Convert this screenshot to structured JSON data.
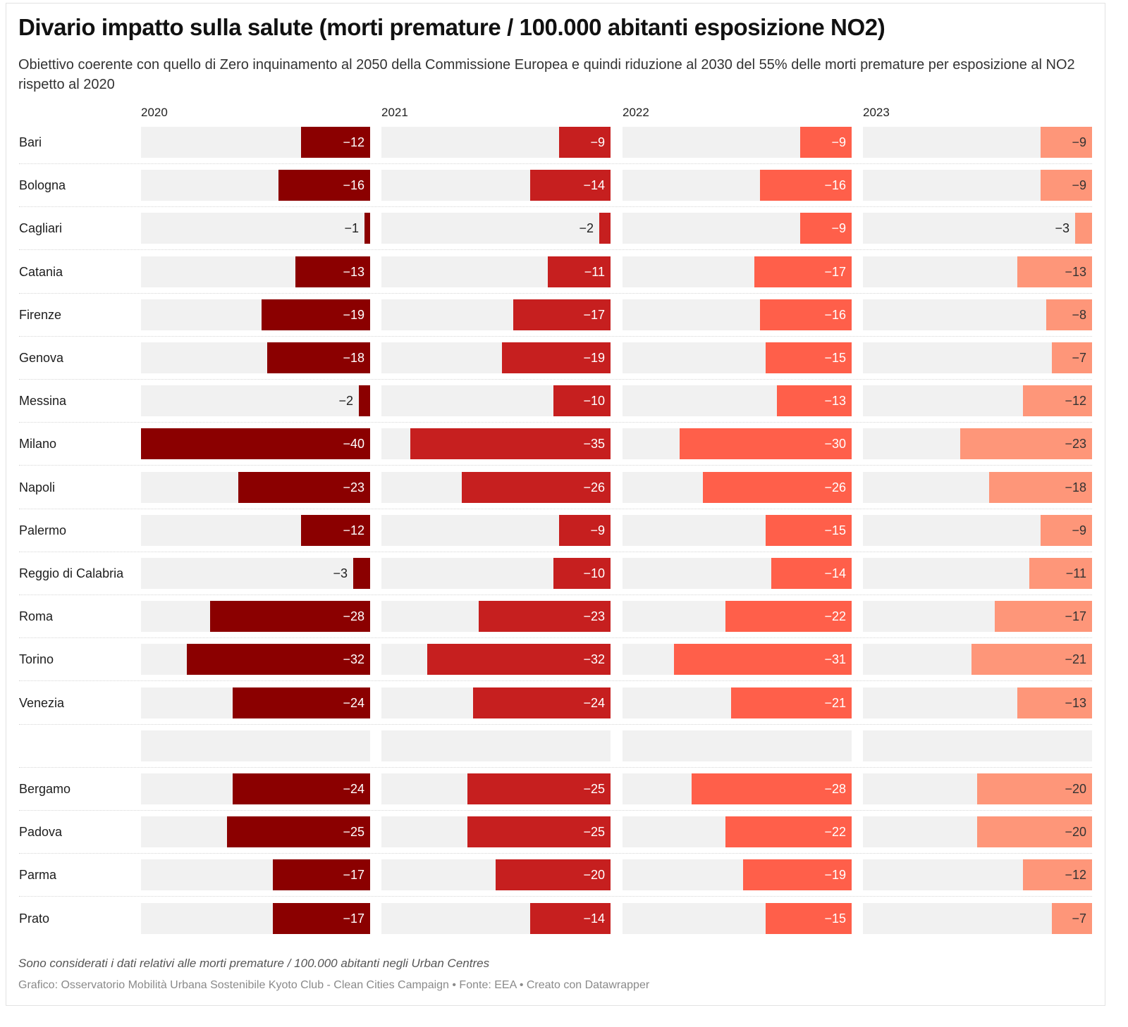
{
  "title": "Divario impatto sulla salute (morti premature / 100.000 abitanti esposizione NO2)",
  "subtitle": "Obiettivo coerente con quello di Zero inquinamento al 2050 della Commissione Europea e quindi riduzione al 2030 del 55% delle morti premature per esposizione al NO2 rispetto al 2020",
  "notes": "Sono considerati i dati relativi alle morti premature / 100.000 abitanti negli Urban Centres",
  "byline": "Grafico: Osservatorio Mobilità Urbana Sostenibile Kyoto Club - Clean Cities Campaign • Fonte: EEA • Creato con Datawrapper",
  "chart_data": {
    "type": "bar",
    "orientation": "horizontal",
    "layout": "small-multiples",
    "title": "Divario impatto sulla salute (morti premature / 100.000 abitanti esposizione NO2)",
    "xlabel": "",
    "ylabel": "",
    "xlim": [
      -40,
      0
    ],
    "grid": false,
    "legend": "none",
    "series": [
      {
        "name": "2020",
        "color": "#8b0000",
        "label_color": "#ffffff",
        "values": [
          -12,
          -16,
          -1,
          -13,
          -19,
          -18,
          -2,
          -40,
          -23,
          -12,
          -3,
          -28,
          -32,
          -24,
          null,
          -24,
          -25,
          -17,
          -17
        ]
      },
      {
        "name": "2021",
        "color": "#c61f1f",
        "label_color": "#ffffff",
        "values": [
          -9,
          -14,
          -2,
          -11,
          -17,
          -19,
          -10,
          -35,
          -26,
          -9,
          -10,
          -23,
          -32,
          -24,
          null,
          -25,
          -25,
          -20,
          -14
        ]
      },
      {
        "name": "2022",
        "color": "#ff5f4a",
        "label_color": "#ffffff",
        "values": [
          -9,
          -16,
          -9,
          -17,
          -16,
          -15,
          -13,
          -30,
          -26,
          -15,
          -14,
          -22,
          -31,
          -21,
          null,
          -28,
          -22,
          -19,
          -15
        ]
      },
      {
        "name": "2023",
        "color": "#fe9679",
        "label_color": "#333333",
        "values": [
          -9,
          -9,
          -3,
          -13,
          -8,
          -7,
          -12,
          -23,
          -18,
          -9,
          -11,
          -17,
          -21,
          -13,
          null,
          -20,
          -20,
          -12,
          -7
        ]
      }
    ],
    "categories": [
      "Bari",
      "Bologna",
      "Cagliari",
      "Catania",
      "Firenze",
      "Genova",
      "Messina",
      "Milano",
      "Napoli",
      "Palermo",
      "Reggio di Calabria",
      "Roma",
      "Torino",
      "Venezia",
      "",
      "Bergamo",
      "Padova",
      "Parma",
      "Prato"
    ]
  }
}
